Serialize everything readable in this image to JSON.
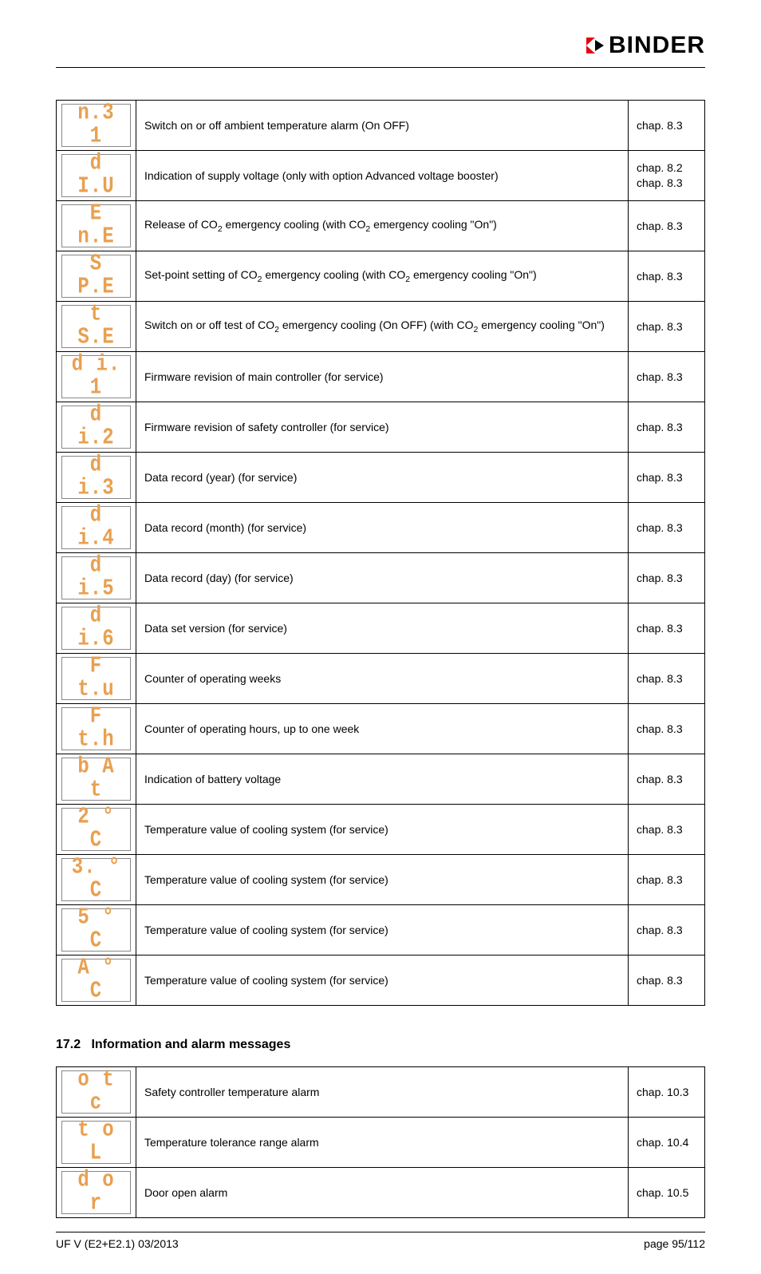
{
  "brand": "BINDER",
  "table1": {
    "rows": [
      {
        "seg": "n.3 1",
        "desc": "Switch on or off ambient temperature alarm (On  OFF)",
        "ref": "chap. 8.3"
      },
      {
        "seg": "d  I.U",
        "desc": "Indication of supply voltage (only with option Advanced voltage booster)",
        "ref": "chap. 8.2\nchap. 8.3"
      },
      {
        "seg": "E n.E",
        "desc_html": "Release of CO<sub>2</sub> emergency cooling (with CO<sub>2</sub> emergency cooling \"On\")",
        "ref": "chap. 8.3"
      },
      {
        "seg": "S P.E",
        "desc_html": "Set-point setting of CO<sub>2</sub> emergency cooling (with CO<sub>2</sub> emergency cooling \"On\")",
        "ref": "chap. 8.3"
      },
      {
        "seg": "t S.E",
        "desc_html": "Switch on or off test of CO<sub>2</sub> emergency cooling (On  OFF) (with CO<sub>2</sub> emergency cooling \"On\")",
        "ref": "chap. 8.3"
      },
      {
        "seg": "d  i. 1",
        "desc": "Firmware revision of main controller (for service)",
        "ref": "chap. 8.3"
      },
      {
        "seg": "d  i.2",
        "desc": "Firmware revision of safety controller (for service)",
        "ref": "chap. 8.3"
      },
      {
        "seg": "d  i.3",
        "desc": "Data record (year) (for service)",
        "ref": "chap. 8.3"
      },
      {
        "seg": "d  i.4",
        "desc": "Data record (month) (for service)",
        "ref": "chap. 8.3"
      },
      {
        "seg": "d  i.5",
        "desc": "Data record (day) (for service)",
        "ref": "chap. 8.3"
      },
      {
        "seg": "d  i.6",
        "desc": "Data set version (for service)",
        "ref": "chap. 8.3"
      },
      {
        "seg": "F t.u",
        "desc": "Counter of operating weeks",
        "ref": "chap. 8.3"
      },
      {
        "seg": "F t.h",
        "desc": "Counter of operating hours, up to one week",
        "ref": "chap. 8.3"
      },
      {
        "seg": "b A t",
        "desc": "Indication of battery voltage",
        "ref": "chap. 8.3"
      },
      {
        "seg": "2 ° C",
        "desc": "Temperature value of cooling system (for service)",
        "ref": "chap. 8.3"
      },
      {
        "seg": "3. ° C",
        "desc": "Temperature value of cooling system (for service)",
        "ref": "chap. 8.3"
      },
      {
        "seg": "5 ° C",
        "desc": "Temperature value of cooling system (for service)",
        "ref": "chap. 8.3"
      },
      {
        "seg": "A ° C",
        "desc": "Temperature value of cooling system (for service)",
        "ref": "chap. 8.3"
      }
    ]
  },
  "section": {
    "number": "17.2",
    "title": "Information and alarm messages"
  },
  "table2": {
    "rows": [
      {
        "seg": "o t c",
        "desc": "Safety controller temperature alarm",
        "ref": "chap. 10.3"
      },
      {
        "seg": "t o L",
        "desc": "Temperature tolerance range alarm",
        "ref": "chap. 10.4"
      },
      {
        "seg": "d o r",
        "desc": "Door open alarm",
        "ref": "chap. 10.5"
      }
    ]
  },
  "footer": {
    "left": "UF V (E2+E2.1) 03/2013",
    "right": "page 95/112"
  }
}
